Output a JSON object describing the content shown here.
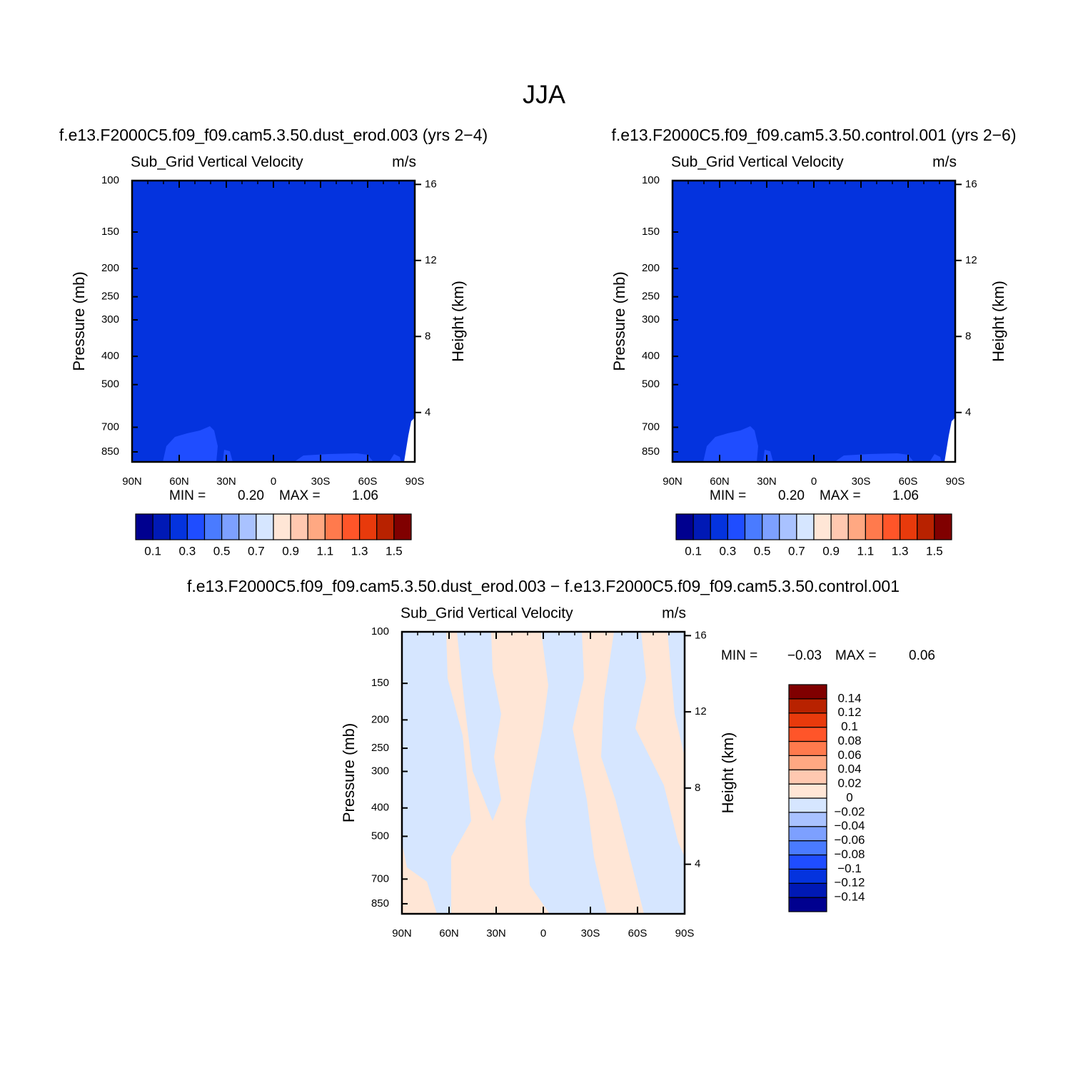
{
  "title": "JJA",
  "chart_data": [
    {
      "type": "contour",
      "title": "f.e13.F2000C5.f09_f09.cam5.3.50.dust_erod.003 (yrs 2−4)",
      "variable": "Sub_Grid Vertical Velocity",
      "units": "m/s",
      "ylabel": "Pressure (mb)",
      "y2label": "Height (km)",
      "log_y": true,
      "ylim": [
        100,
        920
      ],
      "yticks": [
        100,
        150,
        200,
        250,
        300,
        400,
        500,
        700,
        850
      ],
      "y2lim": [
        16.2,
        1.4
      ],
      "y2ticks": [
        4,
        8,
        12,
        16
      ],
      "xlim": [
        90,
        -90
      ],
      "xticks": [
        {
          "value": 90,
          "label": "90N"
        },
        {
          "value": 60,
          "label": "60N"
        },
        {
          "value": 30,
          "label": "30N"
        },
        0,
        {
          "value": -30,
          "label": "30S"
        },
        {
          "value": -60,
          "label": "60S"
        },
        {
          "value": -90,
          "label": "90S"
        }
      ],
      "field_color": "#0433de",
      "patch_color": "#1f4dff",
      "min_text": "MIN =",
      "min": {
        "value": 0.2,
        "label": "0.20"
      },
      "max_text": "MAX =",
      "max": {
        "value": 1.06,
        "label": "1.06"
      },
      "colorbar": {
        "orientation": "horizontal",
        "clim": [
          0,
          1.6
        ],
        "colors": [
          "#00008f",
          "#0019b5",
          "#0433de",
          "#1f4dff",
          "#4a7bff",
          "#7da0ff",
          "#a9c2ff",
          "#d6e6ff",
          "#ffe6d6",
          "#ffc8b0",
          "#ffa882",
          "#ff7a4d",
          "#ff5529",
          "#e83a0c",
          "#b82200",
          "#800000"
        ],
        "levels": [
          0.1,
          0.3,
          0.5,
          0.7,
          0.9,
          1.1,
          1.3,
          1.5
        ]
      }
    },
    {
      "type": "contour",
      "title": "f.e13.F2000C5.f09_f09.cam5.3.50.control.001 (yrs 2−6)",
      "variable": "Sub_Grid Vertical Velocity",
      "units": "m/s",
      "ylabel": "Pressure (mb)",
      "y2label": "Height (km)",
      "log_y": true,
      "ylim": [
        100,
        920
      ],
      "yticks": [
        100,
        150,
        200,
        250,
        300,
        400,
        500,
        700,
        850
      ],
      "y2lim": [
        16.2,
        1.4
      ],
      "y2ticks": [
        4,
        8,
        12,
        16
      ],
      "xlim": [
        90,
        -90
      ],
      "xticks": [
        {
          "value": 90,
          "label": "90N"
        },
        {
          "value": 60,
          "label": "60N"
        },
        {
          "value": 30,
          "label": "30N"
        },
        0,
        {
          "value": -30,
          "label": "30S"
        },
        {
          "value": -60,
          "label": "60S"
        },
        {
          "value": -90,
          "label": "90S"
        }
      ],
      "field_color": "#0433de",
      "patch_color": "#1f4dff",
      "min_text": "MIN =",
      "min": {
        "value": 0.2,
        "label": "0.20"
      },
      "max_text": "MAX =",
      "max": {
        "value": 1.06,
        "label": "1.06"
      },
      "colorbar": {
        "orientation": "horizontal",
        "clim": [
          0,
          1.6
        ],
        "colors": [
          "#00008f",
          "#0019b5",
          "#0433de",
          "#1f4dff",
          "#4a7bff",
          "#7da0ff",
          "#a9c2ff",
          "#d6e6ff",
          "#ffe6d6",
          "#ffc8b0",
          "#ffa882",
          "#ff7a4d",
          "#ff5529",
          "#e83a0c",
          "#b82200",
          "#800000"
        ],
        "levels": [
          0.1,
          0.3,
          0.5,
          0.7,
          0.9,
          1.1,
          1.3,
          1.5
        ]
      }
    },
    {
      "type": "contour",
      "title": "f.e13.F2000C5.f09_f09.cam5.3.50.dust_erod.003 − f.e13.F2000C5.f09_f09.cam5.3.50.control.001",
      "variable": "Sub_Grid Vertical Velocity",
      "units": "m/s",
      "ylabel": "Pressure (mb)",
      "y2label": "Height (km)",
      "log_y": true,
      "ylim": [
        100,
        920
      ],
      "yticks": [
        100,
        150,
        200,
        250,
        300,
        400,
        500,
        700,
        850
      ],
      "y2lim": [
        16.2,
        1.4
      ],
      "y2ticks": [
        4,
        8,
        12,
        16
      ],
      "xlim": [
        90,
        -90
      ],
      "xticks": [
        {
          "value": 90,
          "label": "90N"
        },
        {
          "value": 60,
          "label": "60N"
        },
        {
          "value": 30,
          "label": "30N"
        },
        0,
        {
          "value": -30,
          "label": "30S"
        },
        {
          "value": -60,
          "label": "60S"
        },
        {
          "value": -90,
          "label": "90S"
        }
      ],
      "field_color": "#ffe6d6",
      "patch_color": "#d6e6ff",
      "min_text": "MIN =",
      "min": {
        "value": -0.03,
        "label": "−0.03"
      },
      "max_text": "MAX =",
      "max": {
        "value": 0.06,
        "label": "0.06"
      },
      "colorbar": {
        "orientation": "vertical",
        "clim": [
          -0.16,
          0.16
        ],
        "colors": [
          "#00008f",
          "#0019b5",
          "#0433de",
          "#1f4dff",
          "#4a7bff",
          "#7da0ff",
          "#a9c2ff",
          "#d6e6ff",
          "#ffe6d6",
          "#ffc8b0",
          "#ffa882",
          "#ff7a4d",
          "#ff5529",
          "#e83a0c",
          "#b82200",
          "#800000"
        ],
        "levels": [
          {
            "value": -0.14,
            "label": "−0.14"
          },
          {
            "value": -0.12,
            "label": "−0.12"
          },
          {
            "value": -0.1,
            "label": "−0.1"
          },
          {
            "value": -0.08,
            "label": "−0.08"
          },
          {
            "value": -0.06,
            "label": "−0.06"
          },
          {
            "value": -0.04,
            "label": "−0.04"
          },
          {
            "value": -0.02,
            "label": "−0.02"
          },
          0,
          0.02,
          0.04,
          0.06,
          0.08,
          0.1,
          0.12,
          0.14
        ]
      }
    }
  ]
}
